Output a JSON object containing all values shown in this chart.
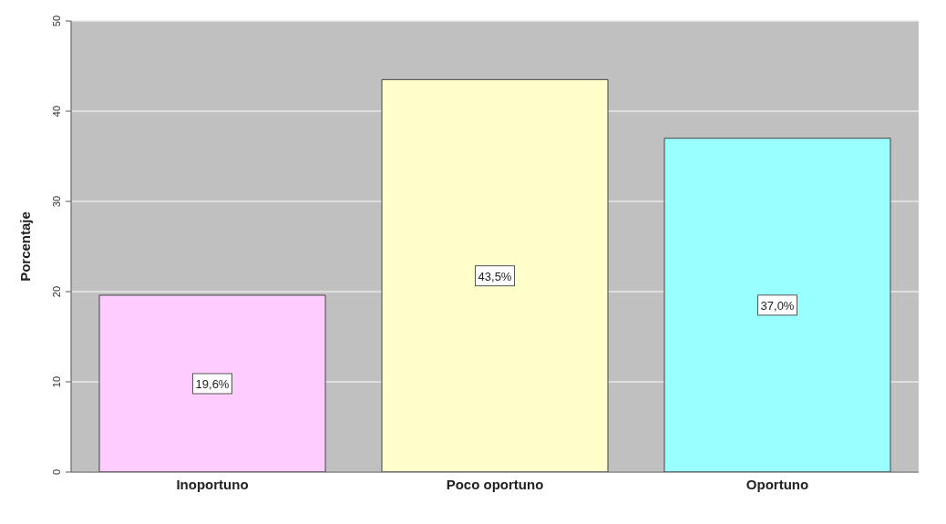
{
  "chart_data": {
    "type": "bar",
    "ylabel": "Porcentaje",
    "categories": [
      "Inoportuno",
      "Poco oportuno",
      "Oportuno"
    ],
    "values": [
      19.6,
      43.5,
      37.0
    ],
    "value_labels": [
      "19,6%",
      "43,5%",
      "37,0%"
    ],
    "colors": [
      "#ffccff",
      "#ffffcc",
      "#99ffff"
    ],
    "ylim": [
      0,
      50
    ],
    "yticks": [
      0,
      10,
      20,
      30,
      40,
      50
    ],
    "grid": "y",
    "legend": false
  }
}
